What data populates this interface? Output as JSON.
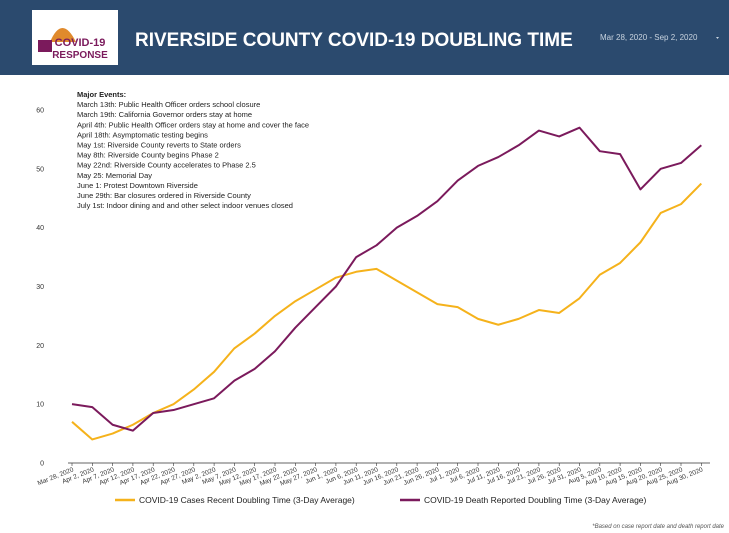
{
  "logo": {
    "line1": "COVID-19",
    "line2": "RESPONSE"
  },
  "header": {
    "date_range": "Mar 28, 2020 - Sep 2, 2020"
  },
  "footnote": "*Based on case report date and death report date",
  "chart_data": {
    "type": "line",
    "title": "RIVERSIDE COUNTY COVID-19 DOUBLING TIME",
    "annotations": [
      "Major Events:",
      "March 13th: Public Health Officer orders school closure",
      "March 19th: California Governor orders stay at home",
      "April 4th: Public Health Officer orders stay at home and cover the face",
      "April 18th: Asymptomatic testing begins",
      "May 1st: Riverside County reverts to State orders",
      "May 8th: Riverside County begins Phase 2",
      "May 22nd: Riverside County accelerates to Phase 2.5",
      "May 25: Memorial Day",
      "June 1: Protest Downtown Riverside",
      "June 29th: Bar closures ordered in Riverside County",
      "July 1st: Indoor dining and and other select indoor venues closed"
    ],
    "categories": [
      "Mar 28, 2020",
      "Apr 2, 2020",
      "Apr 7, 2020",
      "Apr 12, 2020",
      "Apr 17, 2020",
      "Apr 22, 2020",
      "Apr 27, 2020",
      "May 2, 2020",
      "May 7, 2020",
      "May 12, 2020",
      "May 17, 2020",
      "May 22, 2020",
      "May 27, 2020",
      "Jun 1, 2020",
      "Jun 6, 2020",
      "Jun 11, 2020",
      "Jun 16, 2020",
      "Jun 21, 2020",
      "Jun 26, 2020",
      "Jul 1, 2020",
      "Jul 6, 2020",
      "Jul 11, 2020",
      "Jul 16, 2020",
      "Jul 21, 2020",
      "Jul 26, 2020",
      "Jul 31, 2020",
      "Aug 5, 2020",
      "Aug 10, 2020",
      "Aug 15, 2020",
      "Aug 20, 2020",
      "Aug 25, 2020",
      "Aug 30, 2020"
    ],
    "series": [
      {
        "name": "COVID-19 Cases Recent Doubling Time (3-Day Average)",
        "color": "#f5b21b",
        "values": [
          7,
          4,
          5,
          6.5,
          8.5,
          10,
          12.5,
          15.5,
          19.5,
          22,
          25,
          27.5,
          29.5,
          31.5,
          32.5,
          33,
          31,
          29,
          27,
          26.5,
          24.5,
          23.5,
          24.5,
          26,
          25.5,
          28,
          32,
          34,
          37.5,
          42.5,
          44,
          47.5
        ]
      },
      {
        "name": "COVID-19 Death Reported Doubling Time (3-Day Average)",
        "color": "#7b1a5c",
        "values": [
          10,
          9.5,
          6.5,
          5.5,
          8.5,
          9,
          10,
          11,
          14,
          16,
          19,
          23,
          26.5,
          30,
          35,
          37,
          40,
          42,
          44.5,
          48,
          50.5,
          52,
          54,
          56.5,
          55.5,
          57,
          53,
          52.5,
          46.5,
          50,
          51,
          54
        ]
      }
    ],
    "ylim": [
      0,
      60
    ],
    "yticks": [
      0,
      10,
      20,
      30,
      40,
      50,
      60
    ],
    "grid": false,
    "legend": "bottom"
  }
}
